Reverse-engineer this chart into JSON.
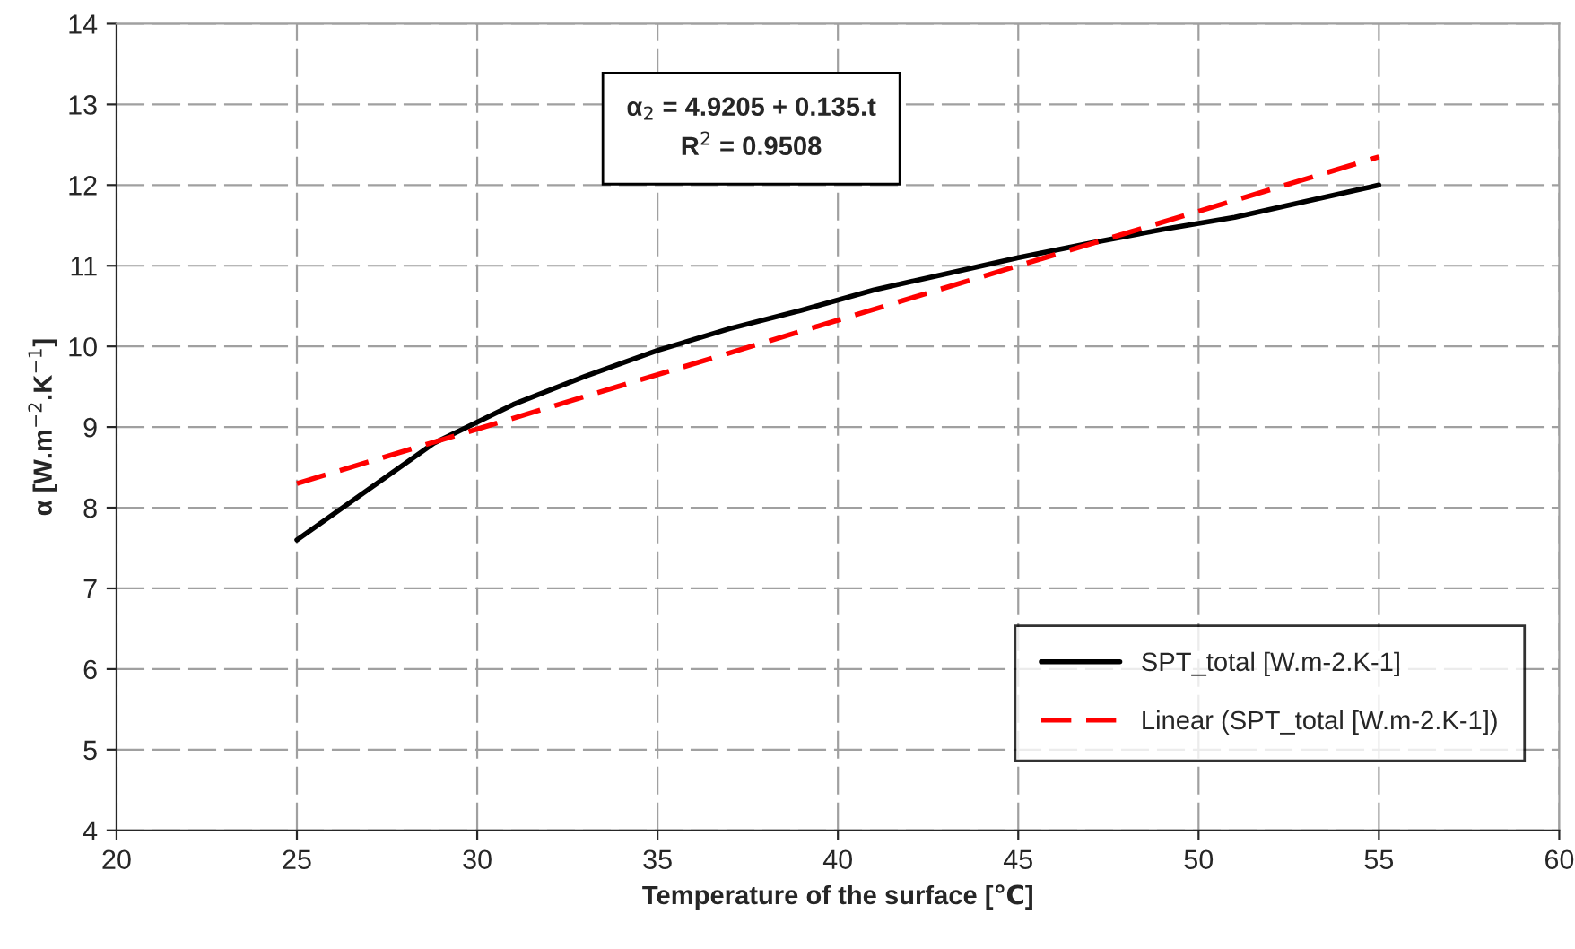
{
  "chart_data": {
    "type": "line",
    "xlabel": "Temperature of the surface [℃]",
    "ylabel": "α [W.m$^{−2}$.K$^{−1}$]",
    "annotations": [
      "α$_{2}$ = 4.9205 + 0.135.t\nR$^{2}$ = 0.9508"
    ],
    "series": [
      {
        "name": "SPT_total [W.m-2.K-1]",
        "color": "#000000",
        "line_style": "solid",
        "x": [
          25,
          28.8,
          31,
          33,
          35,
          37,
          39,
          41,
          43,
          45,
          47,
          49,
          51,
          53,
          55
        ],
        "values": [
          7.6,
          8.8,
          9.28,
          9.63,
          9.95,
          10.22,
          10.45,
          10.7,
          10.9,
          11.1,
          11.28,
          11.45,
          11.6,
          11.8,
          12.0
        ]
      },
      {
        "name": "Linear (SPT_total [W.m-2.K-1])",
        "color": "#ff0000",
        "line_style": "dashed",
        "x": [
          25,
          55
        ],
        "values": [
          8.3,
          12.35
        ]
      }
    ],
    "xlim": [
      20,
      60
    ],
    "xticks": [
      20,
      25,
      30,
      35,
      40,
      45,
      50,
      55,
      60
    ],
    "ylim": [
      4,
      14
    ],
    "yticks": [
      4,
      5,
      6,
      7,
      8,
      9,
      10,
      11,
      12,
      13,
      14
    ],
    "grid": true,
    "legend": "bottom right",
    "marker": "none"
  }
}
